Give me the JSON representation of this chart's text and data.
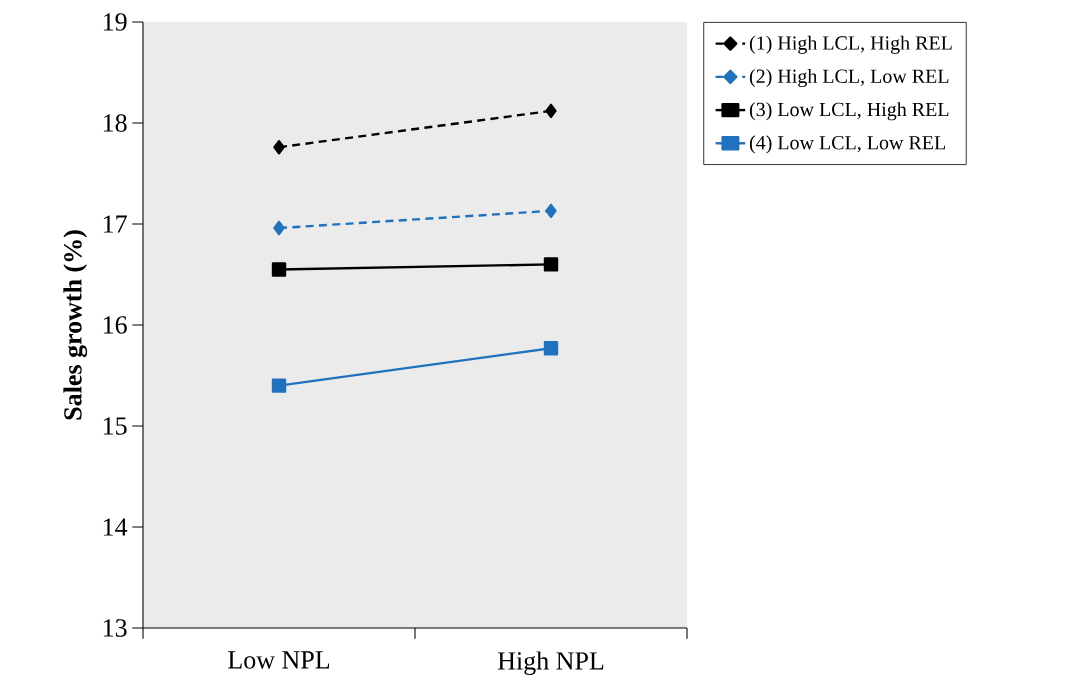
{
  "chart_data": {
    "type": "line",
    "ylabel": "Sales growth (%)",
    "categories": [
      "Low NPL",
      "High NPL"
    ],
    "ylim": [
      13,
      19
    ],
    "yticks": [
      13,
      14,
      15,
      16,
      17,
      18,
      19
    ],
    "legend": "top right",
    "grid": false,
    "series": [
      {
        "name": "(1) High LCL, High REL",
        "color": "#000000",
        "values": [
          17.76,
          18.12
        ],
        "marker": "diamond",
        "line_style": "dashed"
      },
      {
        "name": "(2) High LCL, Low REL",
        "color": "#1f72bd",
        "values": [
          16.96,
          17.13
        ],
        "marker": "diamond",
        "line_style": "dashed"
      },
      {
        "name": "(3) Low LCL, High REL",
        "color": "#000000",
        "values": [
          16.55,
          16.6
        ],
        "marker": "square",
        "line_style": "solid"
      },
      {
        "name": "(4) Low LCL, Low REL",
        "color": "#1f72bd",
        "values": [
          15.4,
          15.77
        ],
        "marker": "square",
        "line_style": "solid"
      }
    ]
  }
}
